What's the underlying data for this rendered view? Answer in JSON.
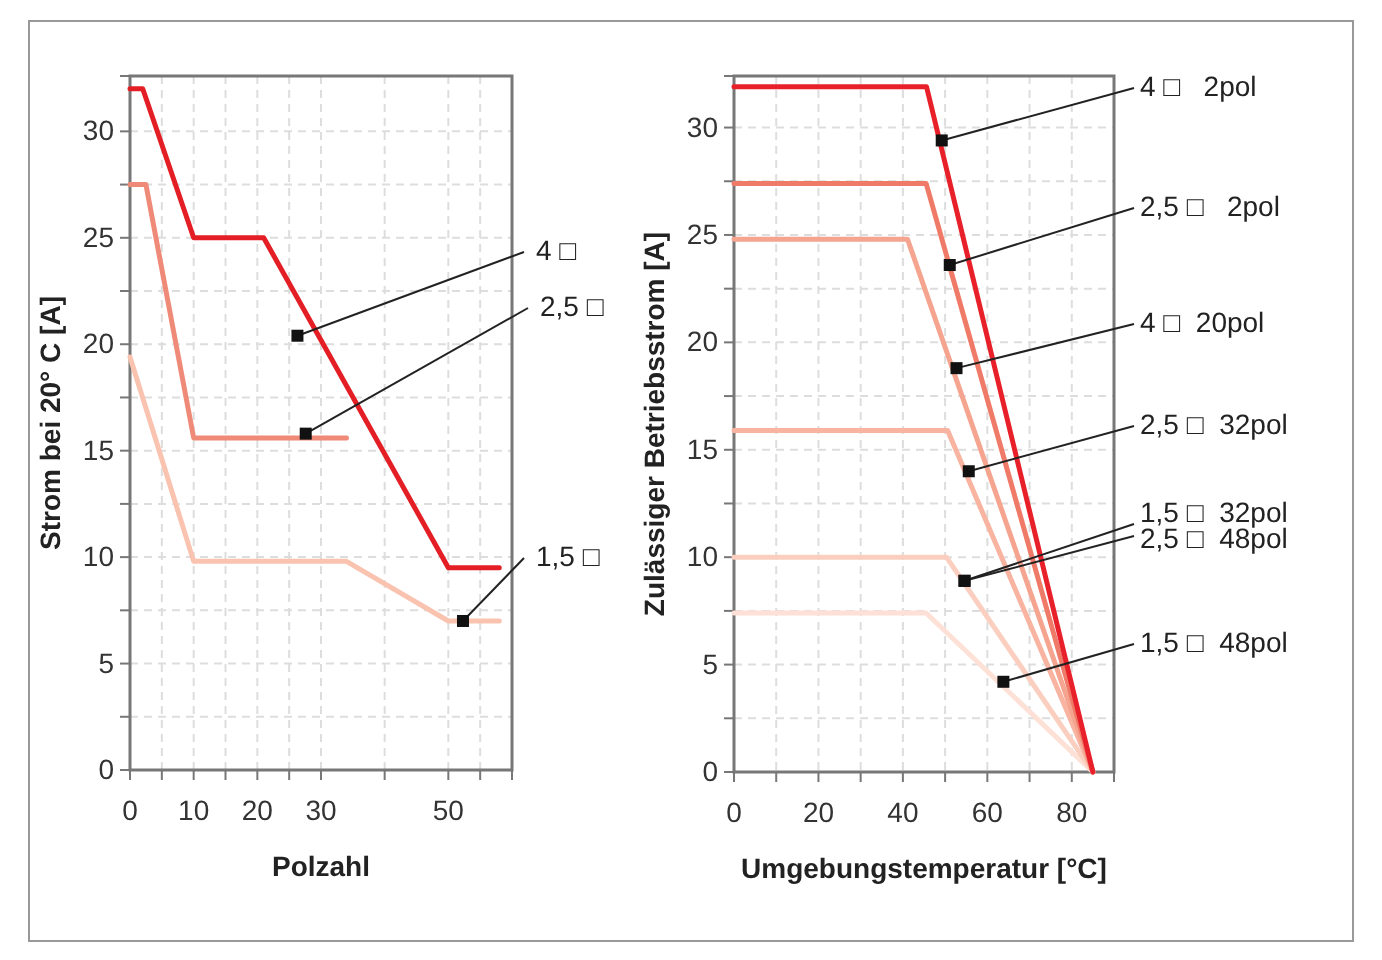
{
  "chart_data": [
    {
      "type": "line",
      "xlabel": "Polzahl",
      "ylabel": "Strom bei 20° C [A]",
      "xlim": [
        0,
        60
      ],
      "ylim": [
        0,
        32.6
      ],
      "xticks": [
        0,
        {
          "value": 5,
          "label": null
        },
        10,
        {
          "value": 15,
          "label": null
        },
        20,
        {
          "value": 25,
          "label": null
        },
        30,
        {
          "value": 40,
          "label": null
        },
        50,
        {
          "value": 55,
          "label": null
        }
      ],
      "yticks": [
        0,
        {
          "value": 2.5,
          "label": null
        },
        5,
        {
          "value": 7.5,
          "label": null
        },
        10,
        {
          "value": 12.5,
          "label": null
        },
        15,
        {
          "value": 17.5,
          "label": null
        },
        20,
        {
          "value": 22.5,
          "label": null
        },
        25,
        {
          "value": 27.5,
          "label": null
        },
        30
      ],
      "grid": true,
      "series": [
        {
          "color": "#e31e24",
          "x": [
            0,
            2,
            10,
            21,
            50,
            58
          ],
          "values": [
            32,
            32,
            25,
            25,
            9.5,
            9.5
          ]
        },
        {
          "color": "#f08a78",
          "x": [
            0,
            2.5,
            10,
            34
          ],
          "values": [
            27.5,
            27.5,
            15.6,
            15.6
          ]
        },
        {
          "color": "#f9c3b0",
          "x": [
            0,
            10,
            34,
            50,
            58
          ],
          "values": [
            19.4,
            9.8,
            9.8,
            7,
            7
          ]
        }
      ],
      "annotations": [
        {
          "text": "4 □",
          "x": 26.3,
          "y": 20.4
        },
        {
          "text": "2,5 □",
          "x": 27.6,
          "y": 15.8
        },
        {
          "text": "1,5 □",
          "x": 52.3,
          "y": 7
        }
      ]
    },
    {
      "type": "line",
      "xlabel": "Umgebungstemperatur [°C]",
      "ylabel": "Zulässiger Betriebsstrom [A]",
      "xlim": [
        0,
        90
      ],
      "ylim": [
        0,
        32.4
      ],
      "xticks": [
        0,
        {
          "value": 10,
          "label": null
        },
        20,
        {
          "value": 30,
          "label": null
        },
        40,
        {
          "value": 50,
          "label": null
        },
        60,
        {
          "value": 70,
          "label": null
        },
        80
      ],
      "yticks": [
        0,
        {
          "value": 2.5,
          "label": null
        },
        5,
        {
          "value": 7.5,
          "label": null
        },
        10,
        {
          "value": 12.5,
          "label": null
        },
        15,
        {
          "value": 17.5,
          "label": null
        },
        20,
        {
          "value": 22.5,
          "label": null
        },
        25,
        {
          "value": 27.5,
          "label": null
        },
        30
      ],
      "grid": true,
      "series": [
        {
          "color": "#fde0d6",
          "x": [
            0,
            45.5,
            85
          ],
          "values": [
            7.4,
            7.4,
            0
          ]
        },
        {
          "color": "#fbcfc0",
          "x": [
            0,
            50.3,
            85
          ],
          "values": [
            10,
            10,
            0
          ]
        },
        {
          "color": "#f8b4a0",
          "x": [
            0,
            50.6,
            85
          ],
          "values": [
            15.9,
            15.9,
            0
          ]
        },
        {
          "color": "#f5a58f",
          "x": [
            0,
            41.1,
            85
          ],
          "values": [
            24.8,
            24.8,
            0
          ]
        },
        {
          "color": "#f07a68",
          "x": [
            0,
            45.5,
            85
          ],
          "values": [
            27.4,
            27.4,
            0
          ]
        },
        {
          "color": "#e8202a",
          "x": [
            0,
            45.6,
            85
          ],
          "values": [
            31.9,
            31.9,
            0
          ]
        }
      ],
      "annotations": [
        {
          "text": "4 □   2pol",
          "x": 49.2,
          "y": 29.4
        },
        {
          "text": "2,5 □   2pol",
          "x": 51.1,
          "y": 23.6
        },
        {
          "text": "4 □  20pol",
          "x": 52.7,
          "y": 18.8
        },
        {
          "text": "2,5 □  32pol",
          "x": 55.6,
          "y": 14
        },
        {
          "text": "1,5 □  32pol",
          "x": 54.6,
          "y": 8.9
        },
        {
          "text": "2,5 □  48pol",
          "x": 54.6,
          "y": 8.9
        },
        {
          "text": "1,5 □  48pol",
          "x": 63.8,
          "y": 4.2
        }
      ]
    }
  ]
}
